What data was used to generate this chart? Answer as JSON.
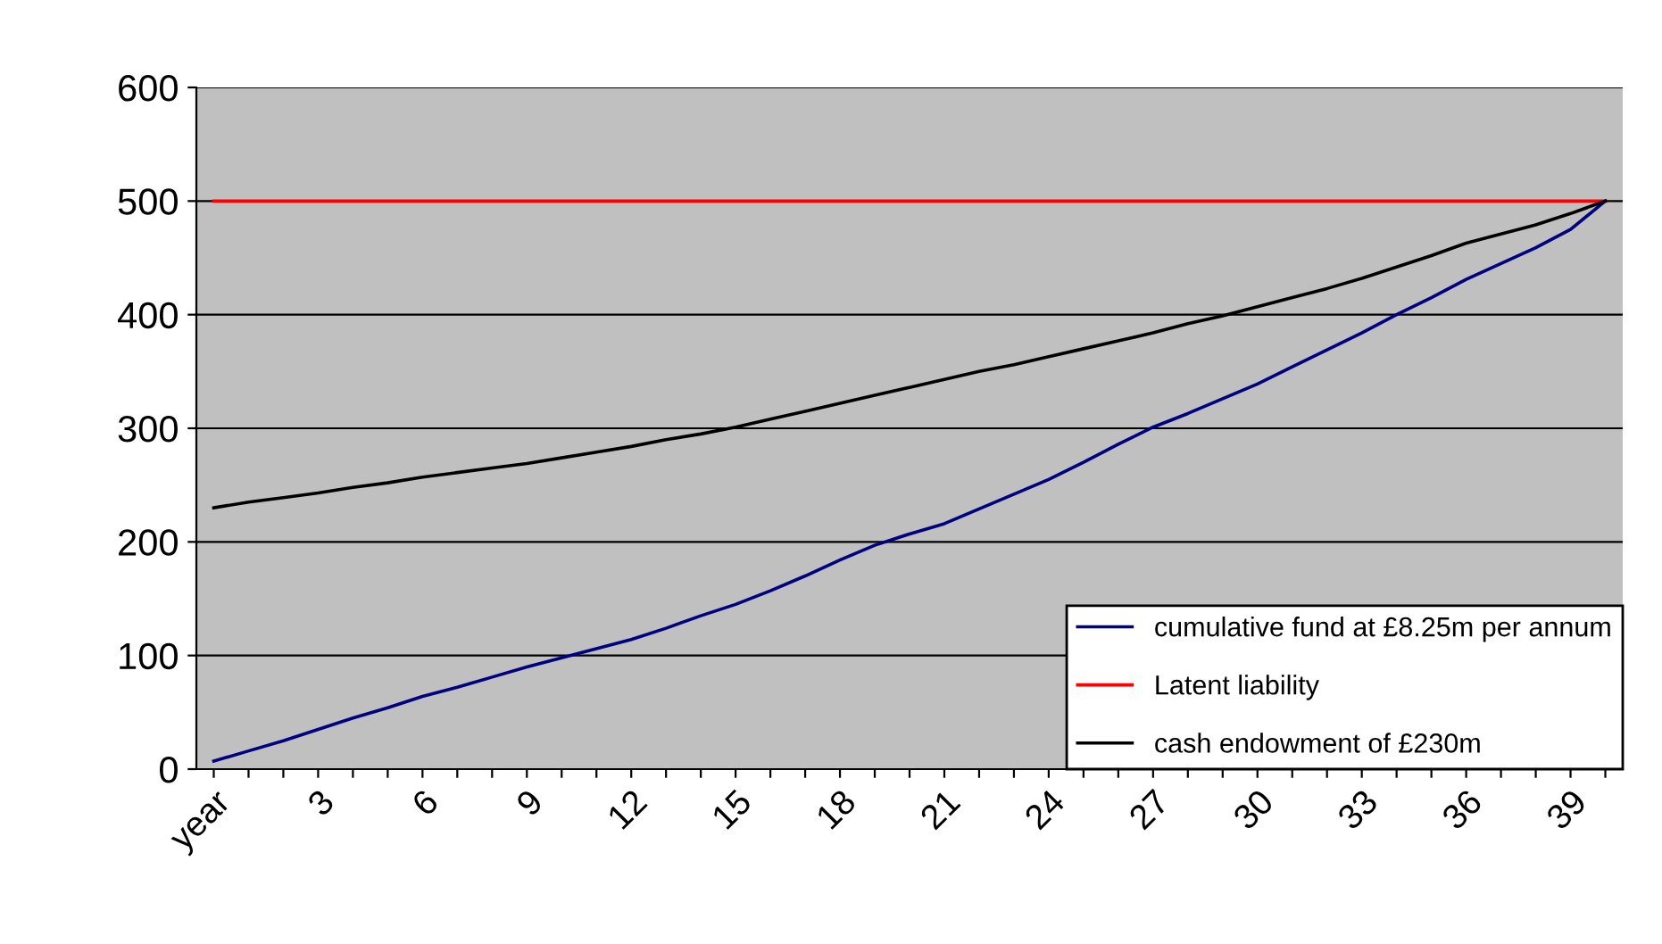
{
  "chart_data": {
    "type": "line",
    "categories": [
      "year",
      null,
      null,
      "3",
      null,
      null,
      "6",
      null,
      null,
      "9",
      null,
      null,
      "12",
      null,
      null,
      "15",
      null,
      null,
      "18",
      null,
      null,
      "21",
      null,
      null,
      "24",
      null,
      null,
      "27",
      null,
      null,
      "30",
      null,
      null,
      "33",
      null,
      null,
      "36",
      null,
      null,
      "39",
      null
    ],
    "series": [
      {
        "name": "cumulative fund at £8.25m per annum",
        "color": "#000080",
        "values": [
          7,
          16,
          25,
          35,
          45,
          54,
          64,
          72,
          81,
          90,
          98,
          106,
          114,
          124,
          135,
          145,
          157,
          170,
          184,
          197,
          207,
          216,
          229,
          242,
          255,
          270,
          286,
          301,
          313,
          326,
          339,
          354,
          369,
          384,
          400,
          415,
          431,
          445,
          459,
          475,
          500
        ]
      },
      {
        "name": "Latent liability",
        "color": "#ff0000",
        "values": [
          500,
          500,
          500,
          500,
          500,
          500,
          500,
          500,
          500,
          500,
          500,
          500,
          500,
          500,
          500,
          500,
          500,
          500,
          500,
          500,
          500,
          500,
          500,
          500,
          500,
          500,
          500,
          500,
          500,
          500,
          500,
          500,
          500,
          500,
          500,
          500,
          500,
          500,
          500,
          500,
          500
        ]
      },
      {
        "name": "cash endowment of £230m",
        "color": "#000000",
        "values": [
          230,
          235,
          239,
          243,
          248,
          252,
          257,
          261,
          265,
          269,
          274,
          279,
          284,
          290,
          295,
          301,
          308,
          315,
          322,
          329,
          336,
          343,
          350,
          356,
          363,
          370,
          377,
          384,
          392,
          399,
          407,
          415,
          423,
          432,
          442,
          452,
          463,
          471,
          479,
          489,
          500
        ]
      }
    ],
    "ylim": [
      0,
      600
    ],
    "yticks": [
      0,
      100,
      200,
      300,
      400,
      500,
      600
    ],
    "grid": "y",
    "legend": "bottom right",
    "marker": "none",
    "line_style": "solid"
  }
}
